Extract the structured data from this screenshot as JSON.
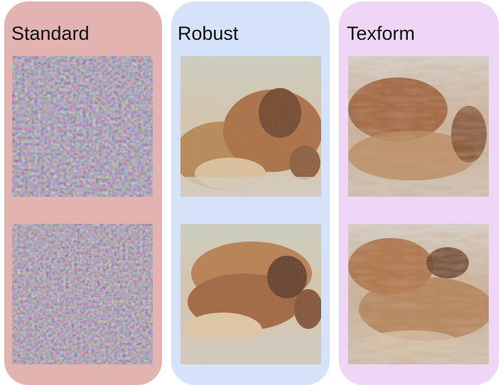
{
  "panels": [
    {
      "id": "standard",
      "title": "Standard"
    },
    {
      "id": "robust",
      "title": "Robust"
    },
    {
      "id": "texform",
      "title": "Texform"
    }
  ],
  "images": {
    "standard_top": "noisy-texture-image",
    "standard_bottom": "noisy-texture-image",
    "robust_top": "robust-dog-visualization",
    "robust_bottom": "robust-dog-visualization",
    "texform_top": "texform-dog-visualization",
    "texform_bottom": "texform-dog-visualization"
  },
  "colors": {
    "standard_bg": "#e3b3b1",
    "robust_bg": "#d5e2fa",
    "texform_bg": "#efd6f6"
  }
}
